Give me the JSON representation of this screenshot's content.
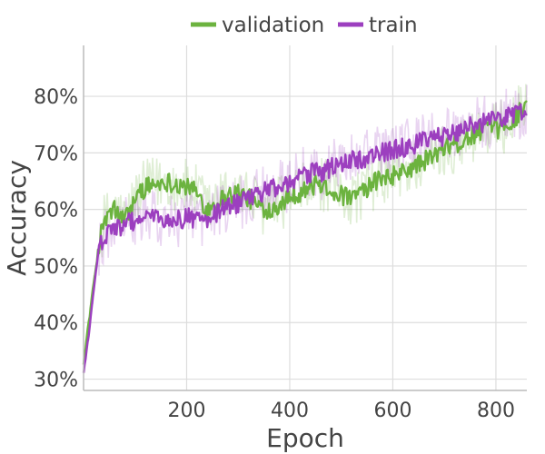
{
  "chart_data": {
    "type": "line",
    "title": "",
    "xlabel": "Epoch",
    "ylabel": "Accuracy",
    "xlim": [
      0,
      860
    ],
    "ylim": [
      0.28,
      0.89
    ],
    "x_ticks": [
      200,
      400,
      600,
      800
    ],
    "x_tick_labels": [
      "200",
      "400",
      "600",
      "800"
    ],
    "y_ticks": [
      0.3,
      0.4,
      0.5,
      0.6,
      0.7,
      0.8
    ],
    "y_tick_labels": [
      "30%",
      "40%",
      "50%",
      "60%",
      "70%",
      "80%"
    ],
    "grid": true,
    "legend_position": "top-center",
    "series": [
      {
        "name": "validation",
        "color": "#6cb33f",
        "x": [
          0,
          10,
          20,
          30,
          40,
          60,
          80,
          100,
          120,
          140,
          160,
          180,
          200,
          220,
          240,
          260,
          280,
          300,
          320,
          340,
          360,
          380,
          400,
          420,
          440,
          460,
          480,
          500,
          520,
          540,
          560,
          580,
          600,
          620,
          640,
          660,
          680,
          700,
          720,
          740,
          760,
          780,
          800,
          820,
          840,
          860
        ],
        "values": [
          0.33,
          0.4,
          0.47,
          0.54,
          0.58,
          0.6,
          0.58,
          0.62,
          0.64,
          0.645,
          0.65,
          0.645,
          0.64,
          0.63,
          0.6,
          0.615,
          0.625,
          0.63,
          0.62,
          0.605,
          0.6,
          0.61,
          0.625,
          0.63,
          0.64,
          0.645,
          0.635,
          0.625,
          0.62,
          0.63,
          0.645,
          0.655,
          0.66,
          0.665,
          0.675,
          0.685,
          0.695,
          0.705,
          0.715,
          0.72,
          0.735,
          0.745,
          0.74,
          0.75,
          0.765,
          0.795
        ]
      },
      {
        "name": "train",
        "color": "#9c3fbf",
        "x": [
          0,
          10,
          20,
          30,
          40,
          60,
          80,
          100,
          120,
          140,
          160,
          180,
          200,
          220,
          240,
          260,
          280,
          300,
          320,
          340,
          360,
          380,
          400,
          420,
          440,
          460,
          480,
          500,
          520,
          540,
          560,
          580,
          600,
          620,
          640,
          660,
          680,
          700,
          720,
          740,
          760,
          780,
          800,
          820,
          840,
          860
        ],
        "values": [
          0.31,
          0.38,
          0.46,
          0.53,
          0.55,
          0.565,
          0.575,
          0.58,
          0.585,
          0.585,
          0.58,
          0.58,
          0.585,
          0.585,
          0.585,
          0.595,
          0.605,
          0.61,
          0.62,
          0.625,
          0.635,
          0.64,
          0.645,
          0.66,
          0.665,
          0.665,
          0.675,
          0.68,
          0.685,
          0.69,
          0.695,
          0.7,
          0.705,
          0.71,
          0.715,
          0.72,
          0.725,
          0.73,
          0.735,
          0.745,
          0.75,
          0.755,
          0.76,
          0.765,
          0.77,
          0.775
        ]
      }
    ]
  }
}
